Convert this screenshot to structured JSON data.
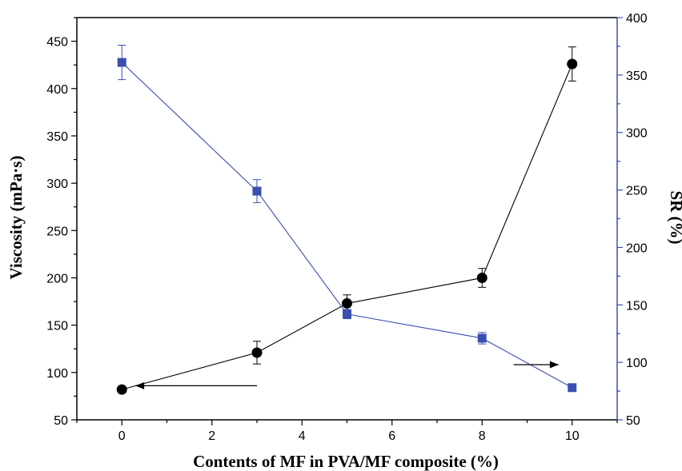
{
  "colors": {
    "viscosity": "#000000",
    "sr": "#3a4fb0",
    "axis_left": "#000000",
    "axis_right": "#3a4fb0"
  },
  "chart_data": {
    "type": "line",
    "title": "",
    "xlabel": "Contents of MF in PVA/MF composite (%)",
    "ylabel_left": "Viscosity (mPa·s)",
    "ylabel_right": "SR (%)",
    "xlim": [
      -1,
      11
    ],
    "ylim_left": [
      50,
      475
    ],
    "ylim_right": [
      50,
      400
    ],
    "x_ticks": [
      0,
      2,
      4,
      6,
      8,
      10
    ],
    "y_left_ticks": [
      50,
      100,
      150,
      200,
      250,
      300,
      350,
      400,
      450
    ],
    "y_right_ticks": [
      50,
      100,
      150,
      200,
      250,
      300,
      350,
      400
    ],
    "grid": false,
    "series": [
      {
        "axis": "left",
        "marker": "circle",
        "x": [
          0,
          3,
          5,
          8,
          10
        ],
        "y": [
          82,
          121,
          173,
          200,
          426
        ],
        "err": [
          3,
          12,
          9,
          10,
          18
        ],
        "arrow": {
          "direction": "left",
          "x_from": 3.0,
          "x_to": 0.3,
          "y": 86
        }
      },
      {
        "axis": "right",
        "marker": "square",
        "x": [
          0,
          3,
          5,
          8,
          10
        ],
        "y": [
          361,
          249,
          142,
          121,
          78
        ],
        "err": [
          15,
          10,
          4,
          5,
          2
        ],
        "arrow": {
          "direction": "right",
          "x_from": 8.7,
          "x_to": 9.7,
          "y": 98
        }
      }
    ]
  }
}
